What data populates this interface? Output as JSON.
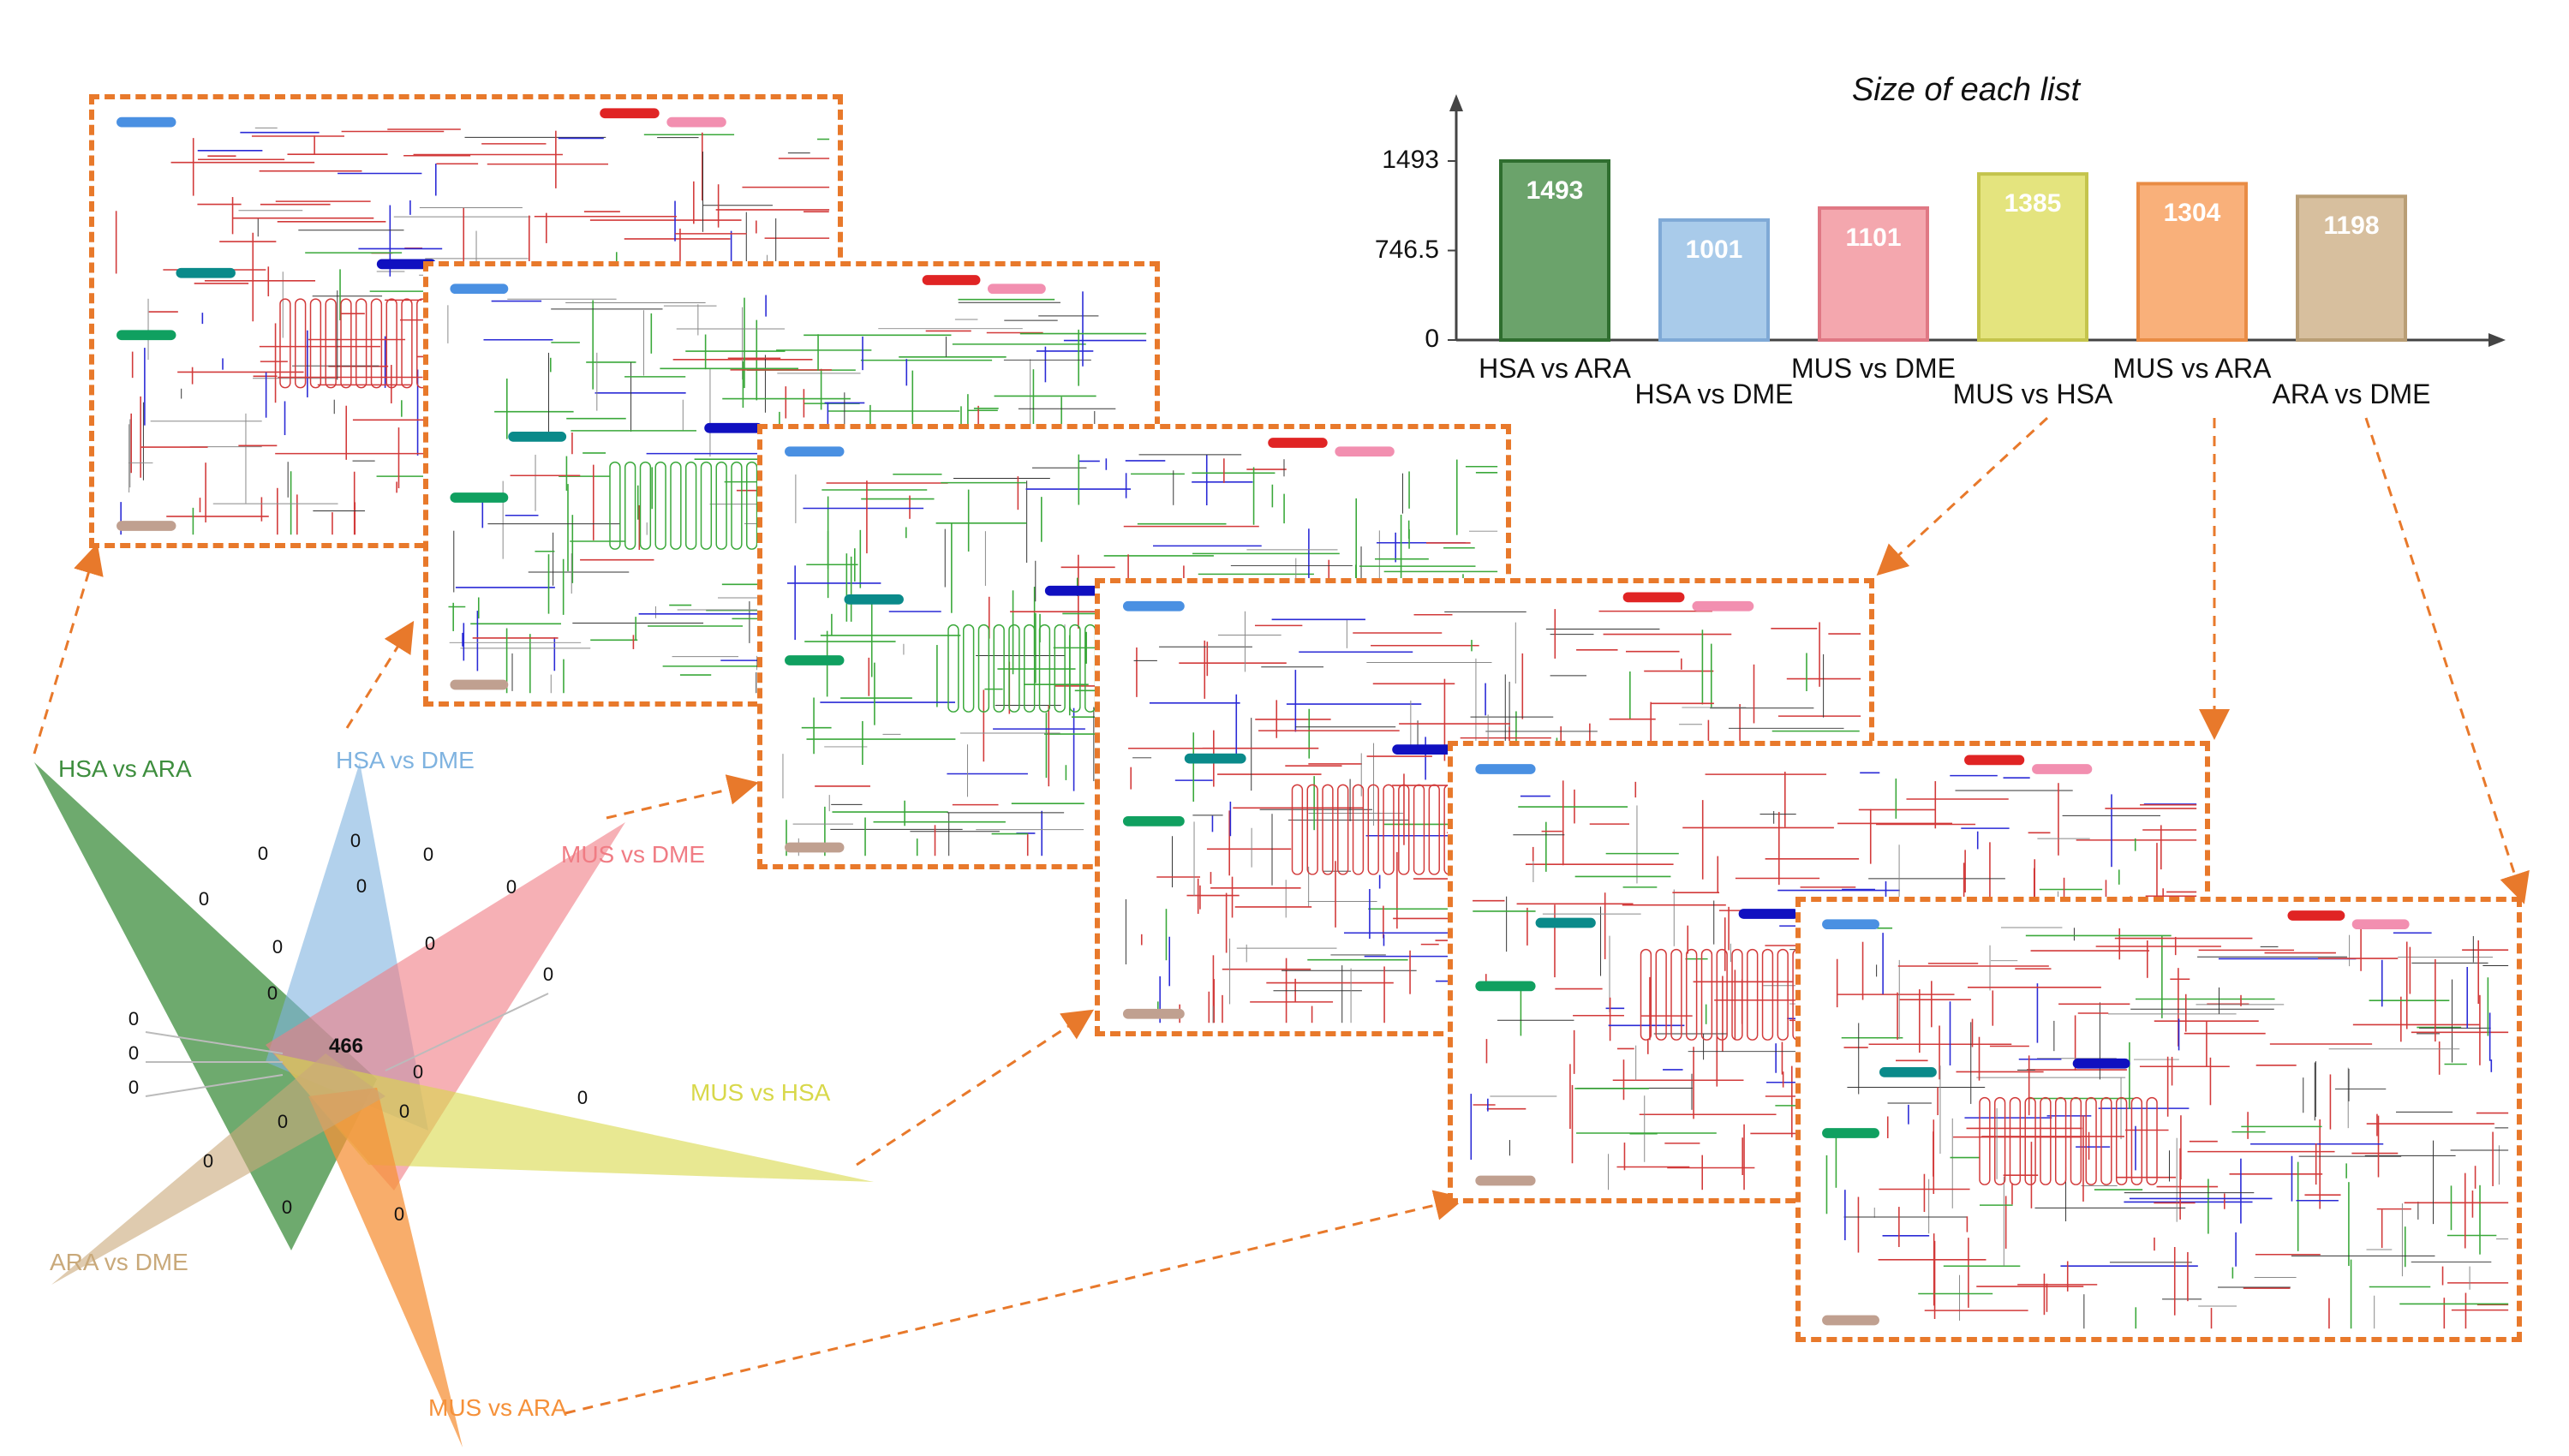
{
  "venn": {
    "sets": [
      {
        "name": "HSA vs ARA",
        "color": "#3E8E3E"
      },
      {
        "name": "HSA vs DME",
        "color": "#7FB3E0"
      },
      {
        "name": "MUS vs DME",
        "color": "#F07C84"
      },
      {
        "name": "MUS vs HSA",
        "color": "#D8D84A"
      },
      {
        "name": "MUS vs ARA",
        "color": "#F5913A"
      },
      {
        "name": "ARA vs DME",
        "color": "#C9A97A"
      }
    ],
    "center_value": "466",
    "region_values": [
      "0",
      "0",
      "0",
      "0",
      "0",
      "0",
      "0",
      "0",
      "0",
      "0",
      "0",
      "0",
      "0",
      "0",
      "0",
      "0",
      "0",
      "0",
      "0",
      "0"
    ]
  },
  "chart_data": {
    "type": "bar",
    "title": "Size of each list",
    "categories": [
      "HSA vs ARA",
      "HSA vs DME",
      "MUS vs DME",
      "MUS vs HSA",
      "MUS vs ARA",
      "ARA vs DME"
    ],
    "values": [
      1493,
      1001,
      1101,
      1385,
      1304,
      1198
    ],
    "colors": [
      "#6BA36B",
      "#A9CBEA",
      "#F4A7AE",
      "#E4E47E",
      "#F9B07A",
      "#D7BF9E"
    ],
    "edge_colors": [
      "#2F6E2F",
      "#7FA9D6",
      "#E07884",
      "#C4C44C",
      "#E98C45",
      "#B99E75"
    ],
    "yticks": [
      "0",
      "746.5",
      "1493"
    ],
    "ylim": [
      0,
      1493
    ],
    "xlabel": "",
    "ylabel": ""
  },
  "colors": {
    "dash": "#E8792B"
  },
  "panels_count": 6
}
